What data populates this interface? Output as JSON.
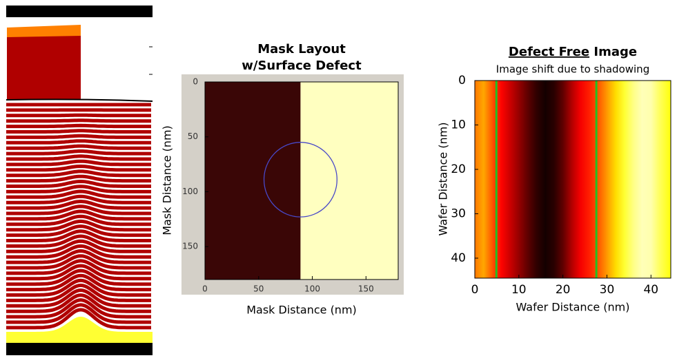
{
  "chart_data": [
    {
      "type": "image",
      "title": [
        "Mask Layout",
        "w/Surface Defect"
      ],
      "x_label": "Mask Distance (nm)",
      "y_label": "Mask Distance (nm)",
      "xlim": [
        0,
        180
      ],
      "ylim": [
        180,
        0
      ],
      "xticks": [
        0,
        50,
        100,
        150
      ],
      "yticks": [
        0,
        50,
        100,
        150
      ],
      "boundary": 89,
      "colors": {
        "left": "#3a0606",
        "right": "#ffffc0"
      },
      "defect": {
        "cx": 89,
        "cy": 89,
        "r": 34,
        "color": "#4848c8"
      }
    },
    {
      "type": "heatmap",
      "title": {
        "underlined": "Defect Free",
        "plain": "Image"
      },
      "subtitle": "Image shift due to shadowing",
      "x_label": "Wafer Distance (nm)",
      "y_label": "Wafer Distance (nm)",
      "xlim": [
        0,
        44.5
      ],
      "ylim": [
        44.5,
        0
      ],
      "xticks": [
        0,
        10,
        20,
        30,
        40
      ],
      "yticks": [
        0,
        10,
        20,
        30,
        40
      ],
      "colormap": "hot",
      "x": [
        0,
        2,
        4,
        6,
        8,
        10,
        12,
        14,
        16,
        18,
        20,
        22,
        24,
        26,
        28,
        30,
        32,
        34,
        36,
        38,
        40,
        42,
        44.5
      ],
      "values": [
        0.55,
        0.62,
        0.5,
        0.38,
        0.3,
        0.22,
        0.14,
        0.07,
        0.03,
        0.06,
        0.14,
        0.26,
        0.36,
        0.42,
        0.5,
        0.6,
        0.7,
        0.8,
        0.88,
        0.93,
        0.92,
        0.84,
        0.76
      ],
      "lines": {
        "x": [
          4.9,
          27.6
        ],
        "color": "#22c022"
      }
    }
  ]
}
